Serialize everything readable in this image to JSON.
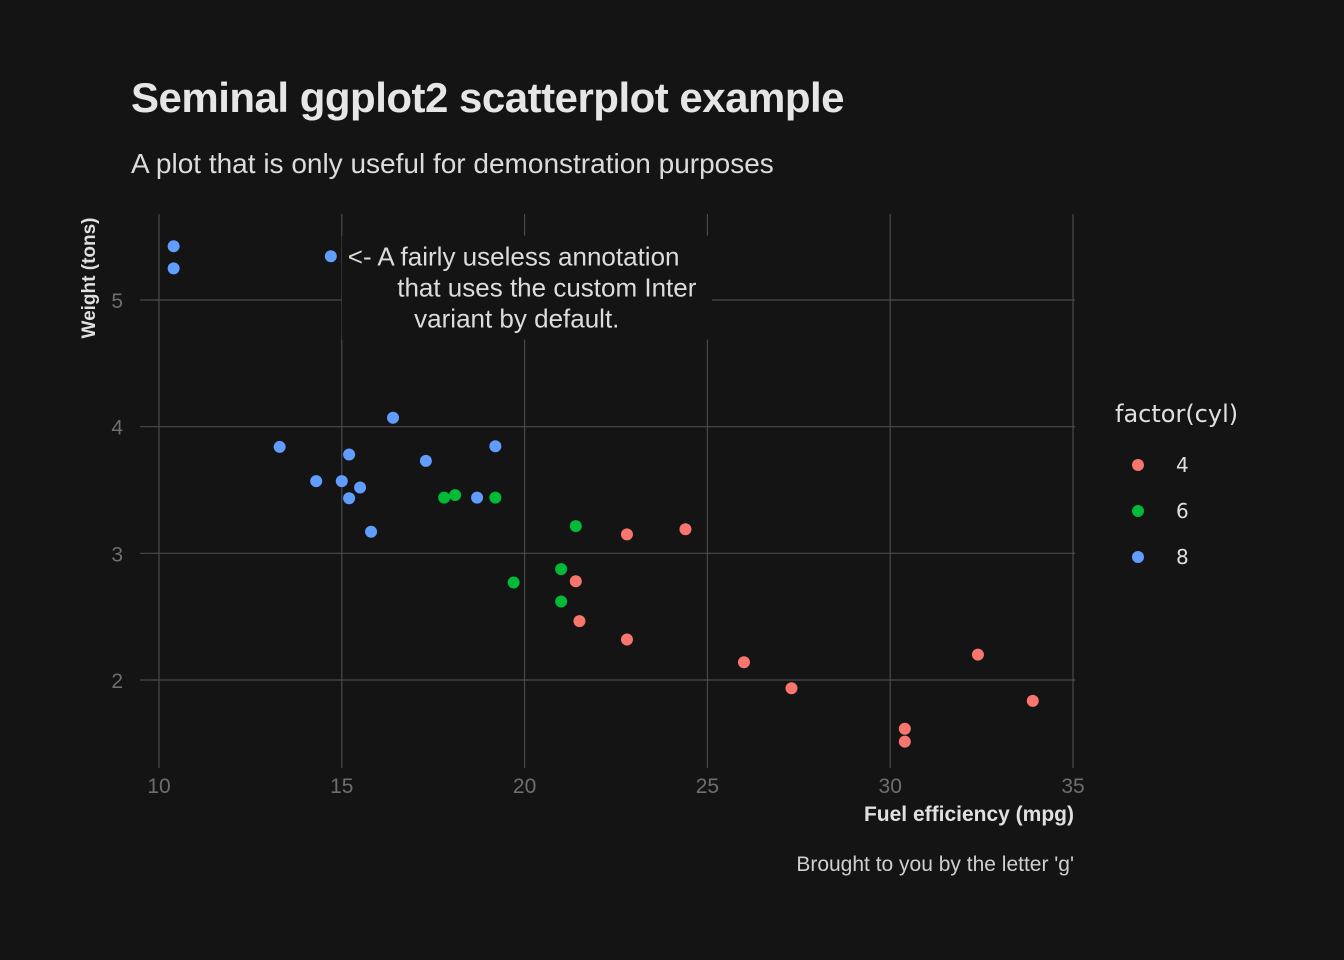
{
  "chart_data": {
    "type": "scatter",
    "title": "Seminal ggplot2 scatterplot example",
    "subtitle": "A plot that is only useful for demonstration purposes",
    "caption": "Brought to you by the letter 'g'",
    "xlabel": "Fuel efficiency (mpg)",
    "ylabel": "Weight (tons)",
    "xlim": [
      9.8,
      35
    ],
    "ylim": [
      1.37,
      5.63
    ],
    "x_ticks": [
      10,
      15,
      20,
      25,
      30,
      35
    ],
    "y_ticks": [
      2,
      3,
      4,
      5
    ],
    "annotation": {
      "x": 15,
      "y": 5.35,
      "lines": [
        "<- A fairly useless annotation",
        "that uses the custom Inter",
        "variant by default."
      ]
    },
    "legend": {
      "title": "factor(cyl)",
      "position": "right",
      "entries": [
        {
          "label": "4",
          "color": "#F8766D"
        },
        {
          "label": "6",
          "color": "#00BA38"
        },
        {
          "label": "8",
          "color": "#619CFF"
        }
      ]
    },
    "series": [
      {
        "name": "4",
        "color": "#F8766D",
        "points": [
          [
            22.8,
            2.32
          ],
          [
            24.4,
            3.19
          ],
          [
            22.8,
            3.15
          ],
          [
            32.4,
            2.2
          ],
          [
            30.4,
            1.615
          ],
          [
            33.9,
            1.835
          ],
          [
            21.5,
            2.465
          ],
          [
            27.3,
            1.935
          ],
          [
            26.0,
            2.14
          ],
          [
            30.4,
            1.513
          ],
          [
            21.4,
            2.78
          ]
        ]
      },
      {
        "name": "6",
        "color": "#00BA38",
        "points": [
          [
            21.0,
            2.62
          ],
          [
            21.0,
            2.875
          ],
          [
            21.4,
            3.215
          ],
          [
            18.1,
            3.46
          ],
          [
            19.2,
            3.44
          ],
          [
            17.8,
            3.44
          ],
          [
            19.7,
            2.77
          ]
        ]
      },
      {
        "name": "8",
        "color": "#619CFF",
        "points": [
          [
            18.7,
            3.44
          ],
          [
            14.3,
            3.57
          ],
          [
            16.4,
            4.07
          ],
          [
            17.3,
            3.73
          ],
          [
            15.2,
            3.78
          ],
          [
            10.4,
            5.25
          ],
          [
            10.4,
            5.424
          ],
          [
            14.7,
            5.345
          ],
          [
            15.5,
            3.52
          ],
          [
            15.2,
            3.435
          ],
          [
            13.3,
            3.84
          ],
          [
            19.2,
            3.845
          ],
          [
            15.8,
            3.17
          ],
          [
            15.0,
            3.57
          ]
        ]
      }
    ]
  }
}
